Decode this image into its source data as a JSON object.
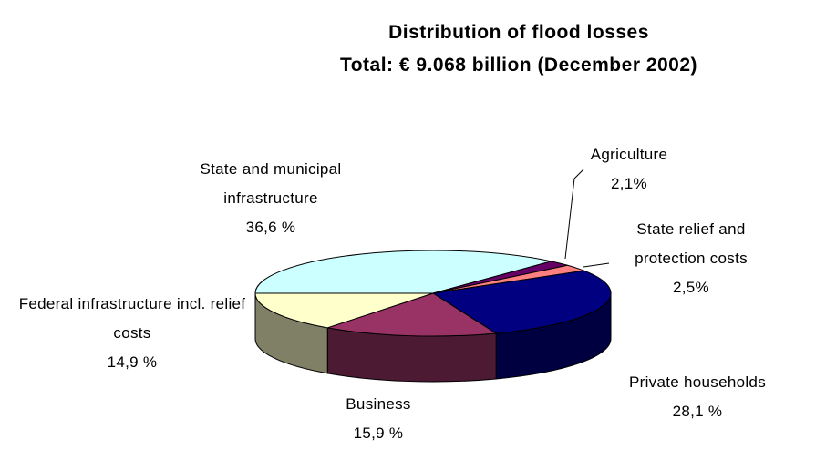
{
  "chart_data": {
    "type": "pie",
    "title": "Distribution of flood losses",
    "subtitle": "Total: € 9.068 billion (December 2002)",
    "categories": [
      "State and municipal infrastructure",
      "Agriculture",
      "State relief and protection costs",
      "Private households",
      "Business",
      "Federal infrastructure incl. relief costs"
    ],
    "values": [
      36.6,
      2.1,
      2.5,
      28.1,
      15.9,
      14.9
    ],
    "value_labels": [
      "36,6 %",
      "2,1%",
      "2,5%",
      "28,1 %",
      "15,9 %",
      "14,9 %"
    ],
    "colors": [
      "#ccffff",
      "#660066",
      "#ff8080",
      "#000080",
      "#993366",
      "#ffffcc"
    ]
  }
}
